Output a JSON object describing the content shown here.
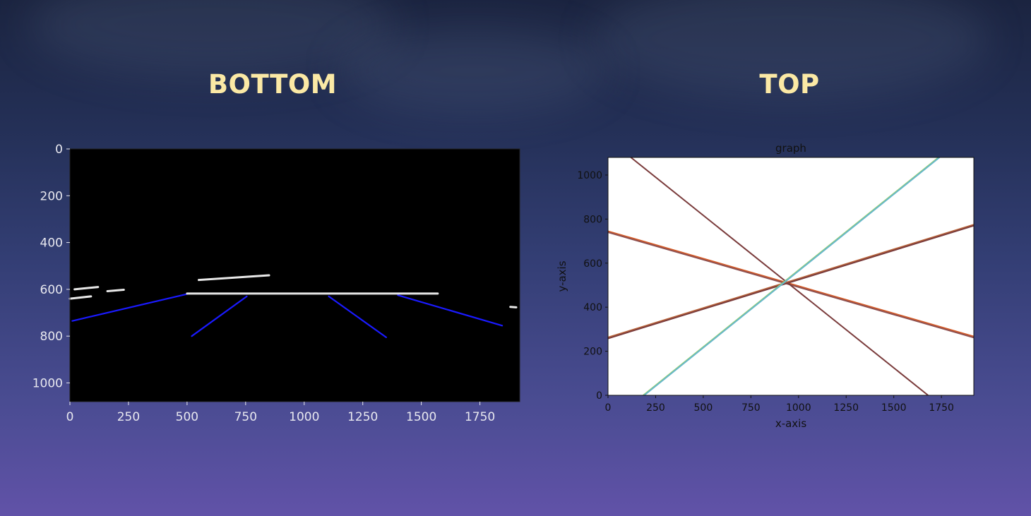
{
  "slide": {
    "left_heading": "BOTTOM",
    "right_heading": "TOP"
  },
  "chart_data": [
    {
      "type": "scatter",
      "panel": "image",
      "title": "",
      "xlabel": "",
      "ylabel": "",
      "xlim": [
        0,
        1920
      ],
      "ylim": [
        1080,
        0
      ],
      "y_inverted": true,
      "background": "#000000",
      "xticks": [
        0,
        250,
        500,
        750,
        1000,
        1250,
        1500,
        1750
      ],
      "yticks": [
        0,
        200,
        400,
        600,
        800,
        1000
      ],
      "series": [
        {
          "color": "#1a1aff",
          "segments": [
            {
              "x": [
                10,
                500
              ],
              "y": [
                735,
                620
              ]
            },
            {
              "x": [
                520,
                755
              ],
              "y": [
                800,
                630
              ]
            },
            {
              "x": [
                1105,
                1350
              ],
              "y": [
                630,
                805
              ]
            },
            {
              "x": [
                1400,
                1845
              ],
              "y": [
                625,
                755
              ]
            }
          ]
        },
        {
          "color": "#e8e8e8",
          "segments": [
            {
              "x": [
                500,
                1570
              ],
              "y": [
                618,
                618
              ]
            },
            {
              "x": [
                550,
                850
              ],
              "y": [
                560,
                540
              ]
            },
            {
              "x": [
                20,
                120
              ],
              "y": [
                600,
                590
              ]
            },
            {
              "x": [
                0,
                90
              ],
              "y": [
                640,
                630
              ]
            },
            {
              "x": [
                160,
                230
              ],
              "y": [
                608,
                602
              ]
            },
            {
              "x": [
                1880,
                1905
              ],
              "y": [
                675,
                677
              ]
            }
          ]
        }
      ]
    },
    {
      "type": "line",
      "panel": "graph",
      "title": "graph",
      "xlabel": "x-axis",
      "ylabel": "y-axis",
      "xlim": [
        0,
        1920
      ],
      "ylim": [
        0,
        1080
      ],
      "xticks": [
        0,
        250,
        500,
        750,
        1000,
        1250,
        1500,
        1750
      ],
      "yticks": [
        0,
        200,
        400,
        600,
        800,
        1000
      ],
      "series": [
        {
          "color": "#d55b26",
          "x": [
            0,
            1920
          ],
          "y": [
            745,
            267
          ]
        },
        {
          "color": "#8e5050",
          "x": [
            0,
            1920
          ],
          "y": [
            740,
            262
          ]
        },
        {
          "color": "#7a3b3b",
          "x": [
            120,
            1680
          ],
          "y": [
            1080,
            0
          ]
        },
        {
          "color": "#b8643a",
          "x": [
            0,
            1920
          ],
          "y": [
            263,
            775
          ]
        },
        {
          "color": "#7a3b3b",
          "x": [
            0,
            1920
          ],
          "y": [
            258,
            770
          ]
        },
        {
          "color": "#96ce6c",
          "x": [
            185,
            1735
          ],
          "y": [
            0,
            1080
          ]
        },
        {
          "color": "#67b7cc",
          "x": [
            190,
            1740
          ],
          "y": [
            0,
            1080
          ]
        }
      ]
    }
  ]
}
